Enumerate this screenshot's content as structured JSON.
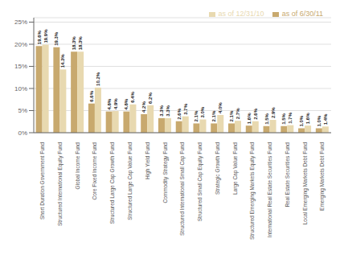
{
  "chart_data": {
    "type": "bar",
    "categories": [
      "Short Duration Government Fund",
      "Structured International Equity Fund",
      "Global Income Fund",
      "Core Fixed Income Fund",
      "Structured Large Cap Growth Fund",
      "Structured Large Cap Value Fund",
      "High Yield Fund",
      "Commodity Strategy Fund",
      "Structured International Small Cap Fund",
      "Structured Small Cap Equity Fund",
      "Strategic Growth Fund",
      "Large Cap Value Fund",
      "Structured Emerging Markets Equity Fund",
      "International Real Estate Securities Fund",
      "Real Estate Securities Fund",
      "Local Emerging Markets Debt Fund",
      "Emerging Markets Debt Fund"
    ],
    "series": [
      {
        "name": "as of 6/30/11",
        "color": "#c8a96e",
        "values": [
          19.6,
          19.3,
          18.3,
          6.6,
          4.8,
          4.8,
          4.2,
          3.3,
          2.6,
          2.1,
          2.1,
          2.1,
          1.6,
          1.5,
          1.5,
          1.0,
          1.0
        ],
        "value_labels": [
          "19.6%",
          "19.3%",
          "18.3%",
          "6.6%",
          "4.8%",
          "4.8%",
          "4.2%",
          "3.3%",
          "2.6%",
          "2.1%",
          "2.1%",
          "2.1%",
          "1.6%",
          "1.5%",
          "1.5%",
          "1.0%",
          "1.0%"
        ]
      },
      {
        "name": "as of 12/31/10",
        "color": "#e8d9b0",
        "values": [
          19.9,
          14.3,
          18.3,
          10.2,
          4.9,
          6.4,
          6.2,
          3.3,
          3.7,
          3.0,
          4.0,
          2.7,
          2.6,
          2.9,
          1.7,
          1.6,
          1.4
        ],
        "value_labels": [
          "19.9%",
          "14.3%",
          "18.3%",
          "10.2%",
          "4.9%",
          "6.4%",
          "6.2%",
          "3.3%",
          "3.7%",
          "3.0%",
          "4.0%",
          "2.7%",
          "2.6%",
          "2.9%",
          "1.7%",
          "1.6%",
          "1.4%"
        ]
      }
    ],
    "ylim": [
      0,
      26
    ],
    "yticks": [
      {
        "value": 0,
        "label": "0%"
      },
      {
        "value": 5,
        "label": "5%"
      },
      {
        "value": 10,
        "label": "10%"
      },
      {
        "value": 15,
        "label": "15%"
      },
      {
        "value": 20,
        "label": "20%"
      },
      {
        "value": 25,
        "label": "25%"
      }
    ],
    "grid": true,
    "legend": "upper right",
    "data_labels": true
  }
}
